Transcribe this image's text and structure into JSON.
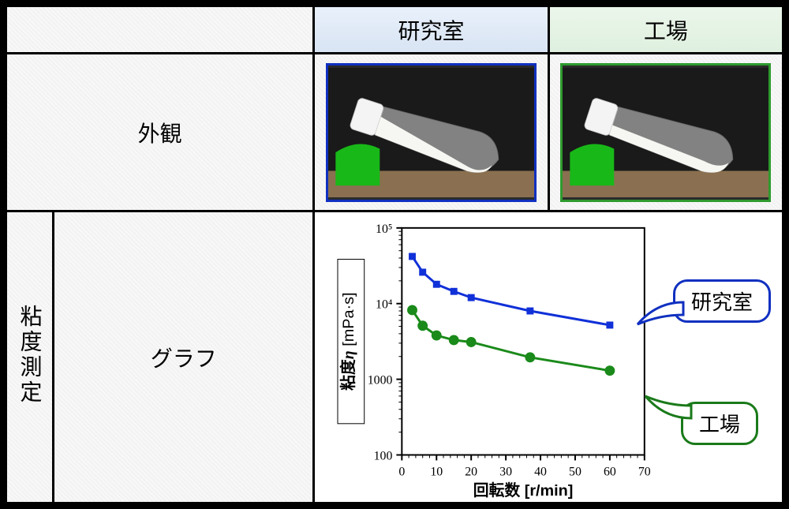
{
  "headers": {
    "lab": "研究室",
    "factory": "工場"
  },
  "rowLabels": {
    "appearance": "外観",
    "viscosity": "粘度測定",
    "graph": "グラフ"
  },
  "callouts": {
    "lab": "研究室",
    "factory": "工場"
  },
  "chart": {
    "type": "line",
    "xlabel": "回転数 [r/min]",
    "ylabel_prefix": "粘度",
    "ylabel_symbol": "η",
    "ylabel_unit": " [mPa·s]",
    "x": {
      "scale": "linear",
      "min": 0,
      "max": 70,
      "ticks": [
        0,
        10,
        20,
        30,
        40,
        50,
        60,
        70
      ]
    },
    "y": {
      "scale": "log",
      "min": 100,
      "max": 100000,
      "ticks": [
        100,
        1000,
        10000,
        100000
      ],
      "tickLabels": [
        "100",
        "1000",
        "10⁴",
        "10⁵"
      ]
    },
    "series": [
      {
        "name": "lab",
        "color": "#1030d8",
        "marker": "square",
        "markerSize": 8,
        "lineWidth": 3,
        "points": [
          {
            "x": 3,
            "y": 42000
          },
          {
            "x": 6,
            "y": 26000
          },
          {
            "x": 10,
            "y": 18000
          },
          {
            "x": 15,
            "y": 14500
          },
          {
            "x": 20,
            "y": 12000
          },
          {
            "x": 37,
            "y": 8000
          },
          {
            "x": 60,
            "y": 5200
          }
        ]
      },
      {
        "name": "factory",
        "color": "#1a8a1a",
        "marker": "circle",
        "markerSize": 6,
        "lineWidth": 3,
        "points": [
          {
            "x": 3,
            "y": 8200
          },
          {
            "x": 6,
            "y": 5100
          },
          {
            "x": 10,
            "y": 3800
          },
          {
            "x": 15,
            "y": 3300
          },
          {
            "x": 20,
            "y": 3100
          },
          {
            "x": 37,
            "y": 1950
          },
          {
            "x": 60,
            "y": 1300
          }
        ]
      }
    ],
    "background_color": "#ffffff",
    "axis_color": "#000000",
    "label_fontsize": 20,
    "tick_fontsize": 16
  },
  "colors": {
    "lab_border": "#1030c0",
    "factory_border": "#2e9a2e",
    "lab_header_bg": "#e2ecf8",
    "factory_header_bg": "#e6f4e6"
  },
  "photos": {
    "description": "Tilted clear plastic bottle with white cap on green stand, white viscous liquid inside, against dark background. Lab sample liquid angle steeper (more viscous); factory sample liquid flows more level.",
    "lab_liquid_angle_deg": 35,
    "factory_liquid_angle_deg": 20
  }
}
